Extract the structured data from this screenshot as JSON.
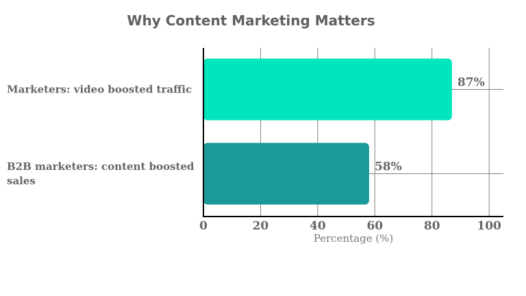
{
  "chart_data": {
    "type": "bar",
    "orientation": "horizontal",
    "title": "Why Content Marketing Matters",
    "xlabel": "Percentage (%)",
    "ylabel": "",
    "categories": [
      "Marketers: video boosted traffic",
      "B2B marketers: content boosted sales"
    ],
    "values": [
      87,
      58
    ],
    "value_labels": [
      "87%",
      "58%"
    ],
    "xlim": [
      0,
      105
    ],
    "xticks": [
      0,
      20,
      40,
      60,
      80,
      100
    ],
    "grid": true,
    "colors": [
      "#00e5be",
      "#1a9a9a"
    ]
  }
}
